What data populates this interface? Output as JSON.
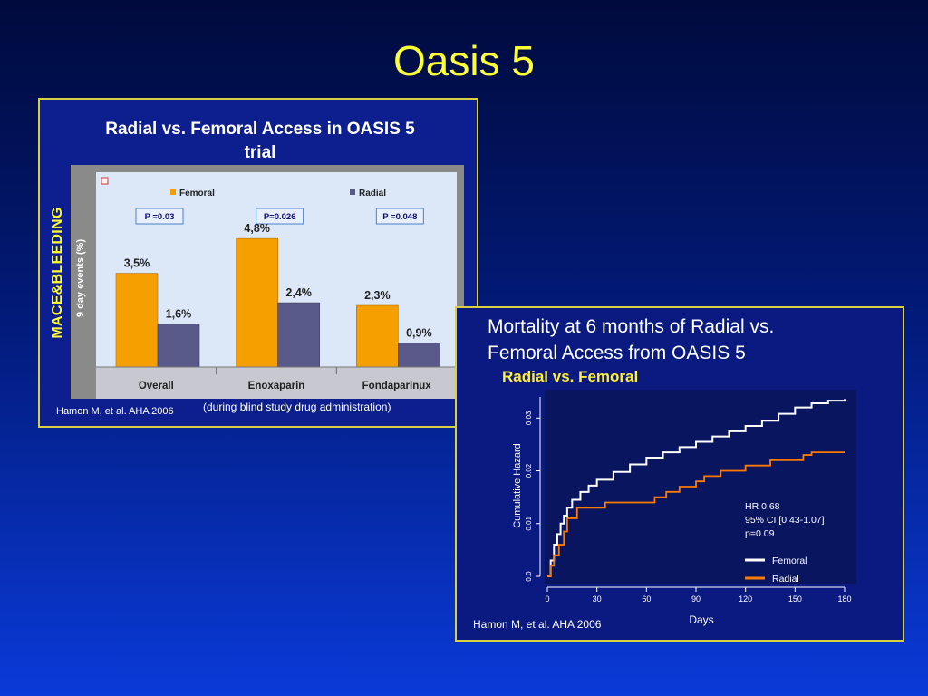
{
  "slide": {
    "title": "Oasis 5"
  },
  "panel1": {
    "title_line1": "Radial vs. Femoral Access in OASIS 5",
    "title_line2": "trial",
    "side_label": "MACE&BLEEDING",
    "citation": "Hamon M, et al.  AHA 2006",
    "note": "(during blind study drug administration)"
  },
  "panel2": {
    "title_line1": "Mortality at 6 months of Radial vs.",
    "title_line2": "Femoral Access from OASIS 5",
    "subtitle": "Radial vs. Femoral",
    "citation": "Hamon M, et al.  AHA 2006"
  },
  "colors": {
    "femoral_bar": "#f5a000",
    "radial_bar": "#5a5a8a",
    "femoral_line": "#ffffff",
    "radial_line": "#ff7a00"
  },
  "chart_data": [
    {
      "type": "bar",
      "title": "Radial vs. Femoral Access in OASIS 5 trial",
      "ylabel": "9 day events (%)",
      "categories": [
        "Overall",
        "Enoxaparin",
        "Fondaparinux"
      ],
      "series": [
        {
          "name": "Femoral",
          "values": [
            3.5,
            4.8,
            2.3
          ],
          "labels": [
            "3,5%",
            "4,8%",
            "2,3%"
          ]
        },
        {
          "name": "Radial",
          "values": [
            1.6,
            2.4,
            0.9
          ],
          "labels": [
            "1,6%",
            "2,4%",
            "0,9%"
          ]
        }
      ],
      "p_values": [
        "P =0.03",
        "P=0.026",
        "P =0.048"
      ],
      "ylim": [
        0,
        6.7
      ],
      "legend": "top"
    },
    {
      "type": "line",
      "title": "Mortality at 6 months of Radial vs. Femoral Access from OASIS 5",
      "xlabel": "Days",
      "ylabel": "Cumulative Hazard",
      "xlim": [
        0,
        180
      ],
      "ylim": [
        0,
        0.034
      ],
      "xticks": [
        "0",
        "30",
        "60",
        "90",
        "120",
        "150",
        "180"
      ],
      "yticks": [
        "0.0",
        "0.01",
        "0.02",
        "0.03"
      ],
      "annotation": [
        "HR 0.68",
        "95% CI [0.43-1.07]",
        "p=0.09"
      ],
      "legend": "bottom-right",
      "series": [
        {
          "name": "Femoral",
          "x": [
            0,
            2,
            4,
            6,
            8,
            10,
            12,
            15,
            20,
            25,
            30,
            40,
            50,
            60,
            70,
            80,
            90,
            100,
            110,
            120,
            130,
            140,
            150,
            160,
            170,
            180
          ],
          "y": [
            0,
            0.003,
            0.006,
            0.008,
            0.01,
            0.0115,
            0.013,
            0.0145,
            0.016,
            0.0172,
            0.0183,
            0.0198,
            0.0212,
            0.0225,
            0.0235,
            0.0245,
            0.0255,
            0.0265,
            0.0275,
            0.0285,
            0.0295,
            0.0308,
            0.032,
            0.0328,
            0.0333,
            0.0336
          ]
        },
        {
          "name": "Radial",
          "x": [
            0,
            2,
            4,
            7,
            10,
            12,
            18,
            25,
            35,
            50,
            65,
            72,
            80,
            90,
            95,
            105,
            120,
            135,
            150,
            155,
            160,
            180
          ],
          "y": [
            0,
            0.002,
            0.004,
            0.006,
            0.0085,
            0.011,
            0.013,
            0.013,
            0.014,
            0.014,
            0.015,
            0.016,
            0.017,
            0.018,
            0.019,
            0.02,
            0.021,
            0.022,
            0.022,
            0.023,
            0.0235,
            0.0235
          ]
        }
      ]
    }
  ]
}
